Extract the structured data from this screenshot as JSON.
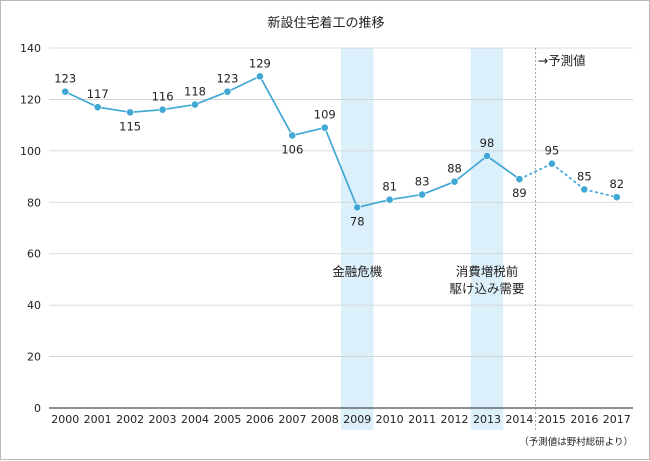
{
  "chart_data": {
    "type": "line",
    "title": "新設住宅着工の推移",
    "categories": [
      "2000",
      "2001",
      "2002",
      "2003",
      "2004",
      "2005",
      "2006",
      "2007",
      "2008",
      "2009",
      "2010",
      "2011",
      "2012",
      "2013",
      "2014",
      "2015",
      "2016",
      "2017"
    ],
    "series": [
      {
        "name": "新設住宅着工",
        "values": [
          123,
          117,
          115,
          116,
          118,
          123,
          129,
          106,
          109,
          78,
          81,
          83,
          88,
          98,
          89,
          95,
          85,
          82
        ],
        "forecast_from": "2015"
      }
    ],
    "ylim": [
      0,
      140
    ],
    "yticks": [
      0,
      20,
      40,
      60,
      80,
      100,
      120,
      140
    ],
    "highlights": [
      {
        "category": "2009",
        "label_lines": [
          "金融危機"
        ]
      },
      {
        "category": "2013",
        "label_lines": [
          "消費増税前",
          "駆け込み需要"
        ]
      }
    ],
    "forecast_marker": {
      "after": "2014",
      "label": "→予測値"
    },
    "source": "（予測値は野村総研より）",
    "colors": {
      "line": "#41a7d4",
      "point": "#41a7d4",
      "highlight": "#dcf0fb",
      "grid": "#cfcfcf",
      "axis": "#222222"
    }
  }
}
